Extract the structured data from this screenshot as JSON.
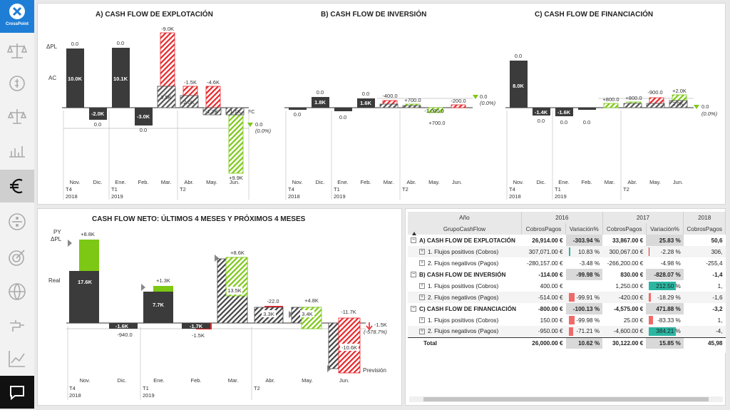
{
  "app": {
    "logo_text": "CrossPoint"
  },
  "sidebar": {
    "items": [
      {
        "name": "balance-icon"
      },
      {
        "name": "money-cycle-icon"
      },
      {
        "name": "scales-icon"
      },
      {
        "name": "bar-chart-icon"
      },
      {
        "name": "euro-icon",
        "active": true
      },
      {
        "name": "divide-icon"
      },
      {
        "name": "target-icon"
      },
      {
        "name": "globe-icon"
      },
      {
        "name": "faucet-icon"
      },
      {
        "name": "line-chart-icon"
      }
    ],
    "chat_icon": "chat-icon"
  },
  "colors": {
    "dark": "#3b3b3b",
    "red": "#e8262a",
    "green": "#7cc814",
    "accent": "#1e7ed6",
    "teal": "#2bb6a2"
  },
  "charts": {
    "a": {
      "title": "A) CASH FLOW DE EXPLOTACIÓN",
      "row_labels": {
        "dpl": "ΔPL",
        "ac": "AC",
        "fc": "FC"
      },
      "end_value": "0.0",
      "end_pct": "(0.0%)",
      "periods": [
        {
          "month": "Nov.",
          "q": "T4",
          "year": "2018"
        },
        {
          "month": "Dic."
        },
        {
          "month": "Ene.",
          "q": "T1",
          "year": "2019"
        },
        {
          "month": "Feb."
        },
        {
          "month": "Mar."
        },
        {
          "month": "Abr.",
          "q": "T2"
        },
        {
          "month": "May."
        },
        {
          "month": "Jun."
        }
      ],
      "bars": [
        {
          "label": "10.0K",
          "delta": "0.0"
        },
        {
          "label": "-2.0K",
          "delta": "0.0"
        },
        {
          "label": "10.1K",
          "delta": "0.0"
        },
        {
          "label": "-3.0K",
          "delta": "0.0"
        },
        {
          "label": "3.5K",
          "delta": "-9.0K"
        },
        {
          "label": "2.0K",
          "delta": "-1.5K"
        },
        {
          "label": "-1.2K",
          "delta": "-4.6K"
        },
        {
          "label": "-1.1K",
          "delta": "+9.9K"
        }
      ]
    },
    "b": {
      "title": "B) CASH FLOW DE INVERSIÓN",
      "end_value": "0.0",
      "end_pct": "(0.0%)",
      "periods": [
        {
          "month": "Nov.",
          "q": "T4",
          "year": "2018"
        },
        {
          "month": "Dic."
        },
        {
          "month": "Ene.",
          "q": "T1",
          "year": "2019"
        },
        {
          "month": "Feb."
        },
        {
          "month": "Mar."
        },
        {
          "month": "Abr.",
          "q": "T2"
        },
        {
          "month": "May."
        },
        {
          "month": "Jun."
        }
      ],
      "bars": [
        {
          "delta": "0.0"
        },
        {
          "label": "1.8K",
          "delta": "0.0"
        },
        {
          "delta": "0.0"
        },
        {
          "label": "1.6K",
          "delta": "0.0"
        },
        {
          "delta": "-400.0"
        },
        {
          "delta": "+700.0"
        },
        {
          "delta": "-1,000.0",
          "delta2": "+700.0"
        },
        {
          "delta": "-200.0"
        }
      ]
    },
    "c": {
      "title": "C) CASH FLOW DE FINANCIACIÓN",
      "end_value": "0.0",
      "end_pct": "(0.0%)",
      "periods": [
        {
          "month": "Nov.",
          "q": "T4",
          "year": "2018"
        },
        {
          "month": "Dic."
        },
        {
          "month": "Ene.",
          "q": "T1",
          "year": "2019"
        },
        {
          "month": "Feb."
        },
        {
          "month": "Mar."
        },
        {
          "month": "Abr.",
          "q": "T2"
        },
        {
          "month": "May."
        },
        {
          "month": "Jun."
        }
      ],
      "bars": [
        {
          "label": "8.0K",
          "delta": "0.0"
        },
        {
          "label": "-1.4K",
          "delta": "0.0"
        },
        {
          "label": "-1.6K",
          "delta": "0.0"
        },
        {
          "delta": "0.0"
        },
        {
          "delta": "+800.0"
        },
        {
          "delta": "+800.0"
        },
        {
          "delta": "-900.0"
        },
        {
          "label": "2.0K",
          "delta": "+2.0K"
        }
      ]
    },
    "neto": {
      "title": "CASH FLOW NETO: ÚLTIMOS 4 MESES Y PRÓXIMOS 4 MESES",
      "row_labels": {
        "py": "PY",
        "dpl": "ΔPL",
        "real": "Real",
        "prevision": "Previsión"
      },
      "end_value": "-1.5K",
      "end_pct": "(-578.7%)",
      "periods": [
        {
          "month": "Nov.",
          "q": "T4",
          "year": "2018"
        },
        {
          "month": "Dic."
        },
        {
          "month": "Ene.",
          "q": "T1",
          "year": "2019"
        },
        {
          "month": "Feb."
        },
        {
          "month": "Mar."
        },
        {
          "month": "Abr.",
          "q": "T2"
        },
        {
          "month": "May."
        },
        {
          "month": "Jun."
        }
      ],
      "bars": [
        {
          "label": "17.6K",
          "delta": "+8.8K"
        },
        {
          "label": "-1.6K",
          "delta": "-940.0"
        },
        {
          "label": "7.7K",
          "delta": "+1.3K"
        },
        {
          "label": "-1.7K",
          "delta": "-1.5K"
        },
        {
          "label": "13.5K",
          "delta": "+8.6K"
        },
        {
          "label": "3.3K",
          "delta": "-22.0"
        },
        {
          "label": "3.4K",
          "delta": "+4.8K"
        },
        {
          "label": "-10.6K",
          "delta": "-11.7K"
        }
      ]
    }
  },
  "table": {
    "header_year_label": "Año",
    "header_group_label": "GrupoCashFlow",
    "years": [
      "2016",
      "2017",
      "2018"
    ],
    "col_cobros": "CobrosPagos",
    "col_var": "Variación%",
    "rows": [
      {
        "name": "A) CASH FLOW DE EXPLOTACIÓN",
        "bold": true,
        "c1": "26,914.00 €",
        "v1": "-303.94 %",
        "c2": "33,867.00 €",
        "v2": "25.83 %",
        "c3": "50,6"
      },
      {
        "name": "1. Flujos positivos (Cobros)",
        "c1": "307,071.00 €",
        "v1": "10.83 %",
        "c2": "300,067.00 €",
        "v2": "-2.28 %",
        "c3": "306,"
      },
      {
        "name": "2. Flujos negativos (Pagos)",
        "c1": "-280,157.00 €",
        "v1": "-3.48 %",
        "c2": "-266,200.00 €",
        "v2": "-4.98 %",
        "c3": "-255,4"
      },
      {
        "name": "B) CASH FLOW DE INVERSIÓN",
        "bold": true,
        "c1": "-114.00 €",
        "v1": "-99.98 %",
        "c2": "830.00 €",
        "v2": "-828.07 %",
        "c3": "-1,4"
      },
      {
        "name": "1. Flujos positivos (Cobros)",
        "c1": "400.00 €",
        "v1": "",
        "c2": "1,250.00 €",
        "v2": "212.50 %",
        "c3": "1,"
      },
      {
        "name": "2. Flujos negativos (Pagos)",
        "c1": "-514.00 €",
        "v1": "-99.91 %",
        "c2": "-420.00 €",
        "v2": "-18.29 %",
        "c3": "-1,6"
      },
      {
        "name": "C) CASH FLOW DE FINANCIACIÓN",
        "bold": true,
        "c1": "-800.00 €",
        "v1": "-100.13 %",
        "c2": "-4,575.00 €",
        "v2": "471.88 %",
        "c3": "-3,2"
      },
      {
        "name": "1. Flujos positivos (Cobros)",
        "c1": "150.00 €",
        "v1": "-99.98 %",
        "c2": "25.00 €",
        "v2": "-83.33 %",
        "c3": "1,"
      },
      {
        "name": "2. Flujos negativos (Pagos)",
        "c1": "-950.00 €",
        "v1": "-71.21 %",
        "c2": "-4,600.00 €",
        "v2": "384.21 %",
        "c3": "-4,"
      },
      {
        "name": "Total",
        "bold": true,
        "total": true,
        "c1": "26,000.00 €",
        "v1": "10.62 %",
        "c2": "30,122.00 €",
        "v2": "15.85 %",
        "c3": "45,98"
      }
    ]
  }
}
